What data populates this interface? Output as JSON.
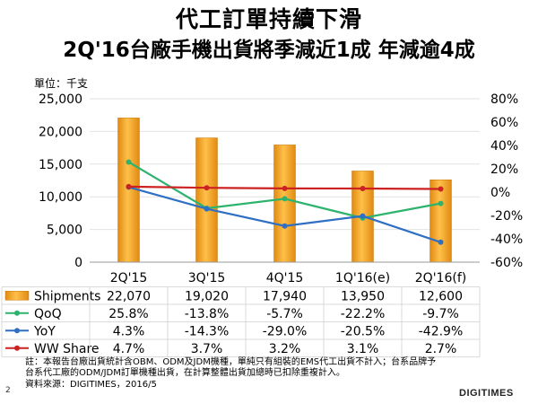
{
  "page": {
    "title_line1": "代工訂單持續下滑",
    "title_line2": "2Q'16台廠手機出貨將季減近1成  年減逾4成",
    "unit_label": "單位：千支",
    "note_line1": "註：本報告台廠出貨統計含OBM、ODM及JDM機種，單純只有組裝的EMS代工出貨不計入；台系品牌予",
    "note_line2": "台系代工廠的ODM/JDM訂單機種出貨，在計算整體出貨加總時已扣除重複計入。",
    "source": "資料來源：DIGITIMES，2016/5",
    "page_number": "2",
    "brand": "DIGITIMES"
  },
  "chart_data": {
    "type": "bar",
    "categories": [
      "2Q'15",
      "3Q'15",
      "4Q'15",
      "1Q'16(e)",
      "2Q'16(f)"
    ],
    "bar_series": {
      "name": "Shipments",
      "values": [
        22070,
        19020,
        17940,
        13950,
        12600
      ],
      "labels": [
        "22,070",
        "19,020",
        "17,940",
        "13,950",
        "12,600"
      ],
      "color": "#F5A623"
    },
    "line_series": [
      {
        "name": "QoQ",
        "values": [
          25.8,
          -13.8,
          -5.7,
          -22.2,
          -9.7
        ],
        "labels": [
          "25.8%",
          "-13.8%",
          "-5.7%",
          "-22.2%",
          "-9.7%"
        ],
        "color": "#2DB36E"
      },
      {
        "name": "YoY",
        "values": [
          4.3,
          -14.3,
          -29.0,
          -20.5,
          -42.9
        ],
        "labels": [
          "4.3%",
          "-14.3%",
          "-29.0%",
          "-20.5%",
          "-42.9%"
        ],
        "color": "#2F6FC4"
      },
      {
        "name": "WW Share",
        "values": [
          4.7,
          3.7,
          3.2,
          3.1,
          2.7
        ],
        "labels": [
          "4.7%",
          "3.7%",
          "3.2%",
          "3.1%",
          "2.7%"
        ],
        "color": "#CC2222"
      }
    ],
    "y_left": {
      "min": 0,
      "max": 25000,
      "ticks": [
        0,
        5000,
        10000,
        15000,
        20000,
        25000
      ],
      "tick_labels": [
        "0",
        "5,000",
        "10,000",
        "15,000",
        "20,000",
        "25,000"
      ]
    },
    "y_right": {
      "min": -60,
      "max": 80,
      "ticks": [
        -60,
        -40,
        -20,
        0,
        20,
        40,
        60,
        80
      ],
      "tick_labels": [
        "-60%",
        "-40%",
        "-20%",
        "0%",
        "20%",
        "40%",
        "60%",
        "80%"
      ]
    },
    "grid": true
  }
}
